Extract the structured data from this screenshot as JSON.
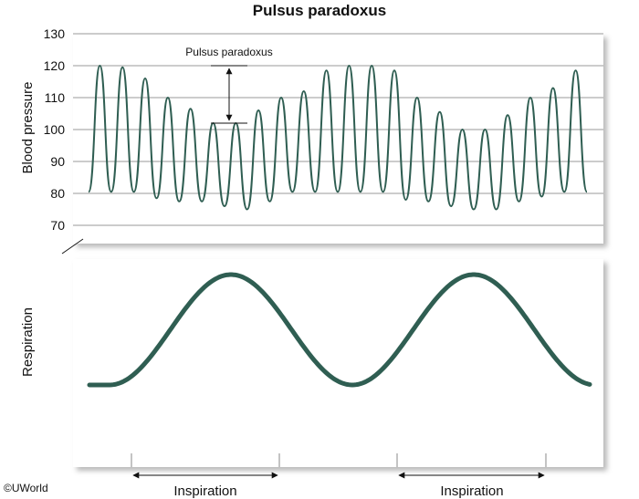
{
  "title": "Pulsus paradoxus",
  "copyright": "©UWorld",
  "colors": {
    "trace": "#2f5e52",
    "grid": "#9a9a9a",
    "panel_bg": "#ffffff"
  },
  "chart_data": {
    "type": "line",
    "title": "Pulsus paradoxus",
    "ylabel": "Blood pressure",
    "y_ticks": [
      130,
      120,
      110,
      100,
      90,
      80,
      70
    ],
    "ylim": [
      70,
      130
    ],
    "grid": true,
    "pressure_peaks": [
      120,
      119.5,
      116,
      110,
      106.5,
      102,
      102,
      106,
      110,
      112,
      118.5,
      120,
      120,
      118.5,
      110,
      105.5,
      100,
      100,
      104.5,
      110,
      113,
      118.5
    ],
    "pressure_troughs": [
      80.5,
      80.5,
      80.5,
      78.5,
      77.5,
      77.5,
      76,
      75,
      77.5,
      80.5,
      80.5,
      80.5,
      80.5,
      80.5,
      78,
      77.5,
      76,
      75,
      75,
      77.5,
      79,
      80.5,
      80.5
    ],
    "annotation": {
      "label": "Pulsus paradoxus",
      "from": 120,
      "to": 102
    },
    "respiration_label": "Respiration",
    "phases": [
      {
        "label": "Inspiration"
      },
      {
        "label": "Inspiration"
      }
    ]
  }
}
